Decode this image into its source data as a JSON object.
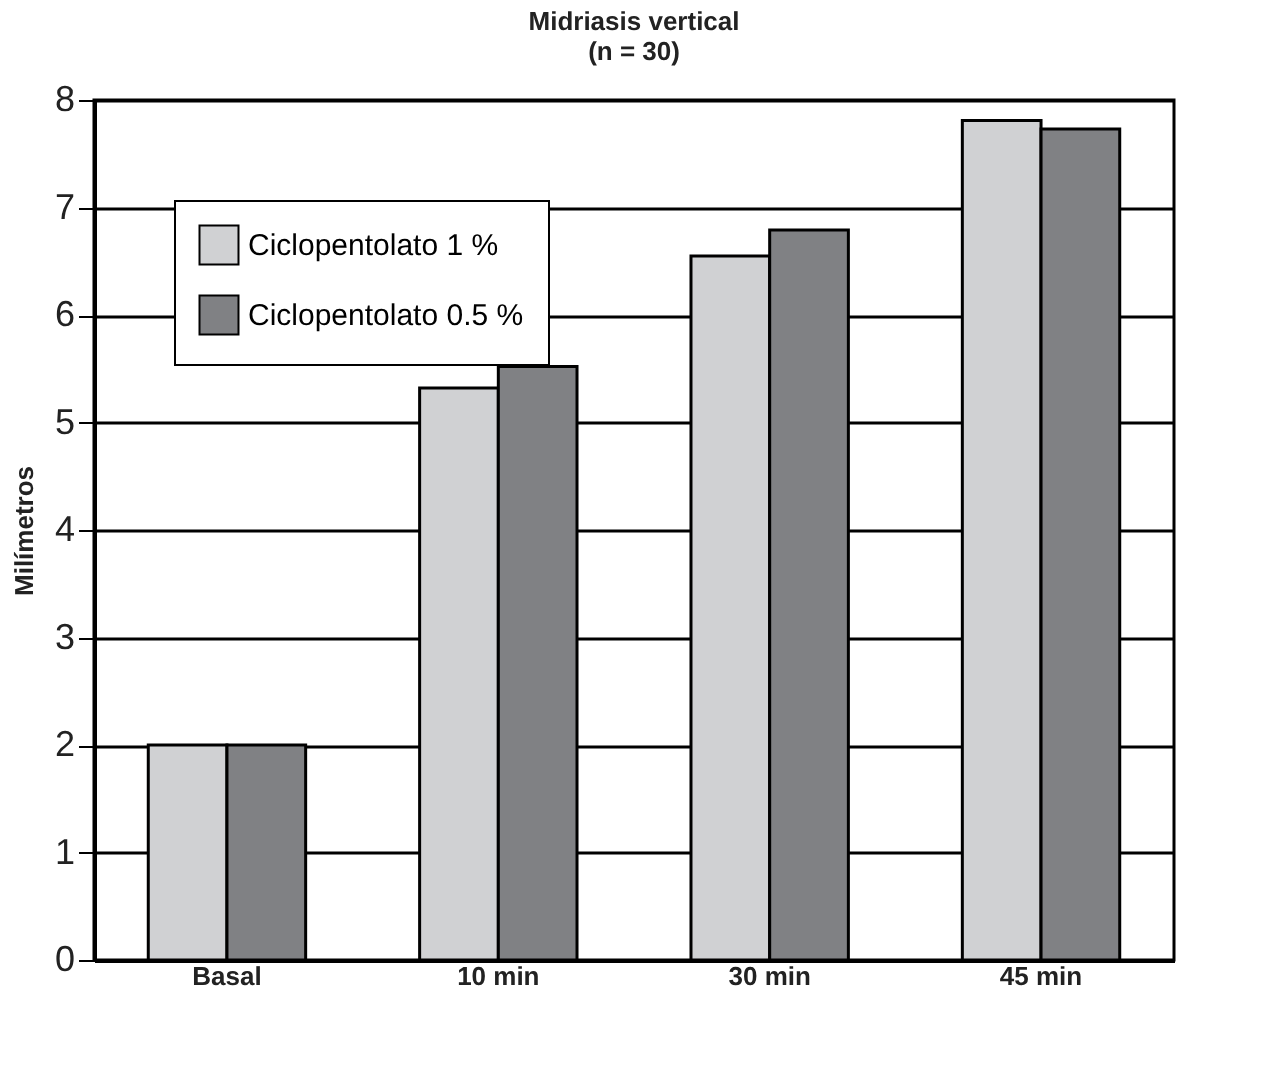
{
  "chart_data": {
    "type": "bar",
    "title": "Midriasis vertical\n(n = 30)",
    "ylabel": "Milímetros",
    "categories": [
      "Basal",
      "10 min",
      "30 min",
      "45 min"
    ],
    "series": [
      {
        "name": "Ciclopentolato 1 %",
        "color": "#d0d1d3",
        "values": [
          2.0,
          5.32,
          6.55,
          7.81
        ]
      },
      {
        "name": "Ciclopentolato 0.5 %",
        "color": "#808184",
        "values": [
          2.0,
          5.52,
          6.79,
          7.73
        ]
      }
    ],
    "ylim": [
      0,
      8
    ],
    "yticks": [
      0,
      1,
      2,
      3,
      4,
      5,
      6,
      7,
      8
    ],
    "grid": "y",
    "legend": "top left"
  }
}
